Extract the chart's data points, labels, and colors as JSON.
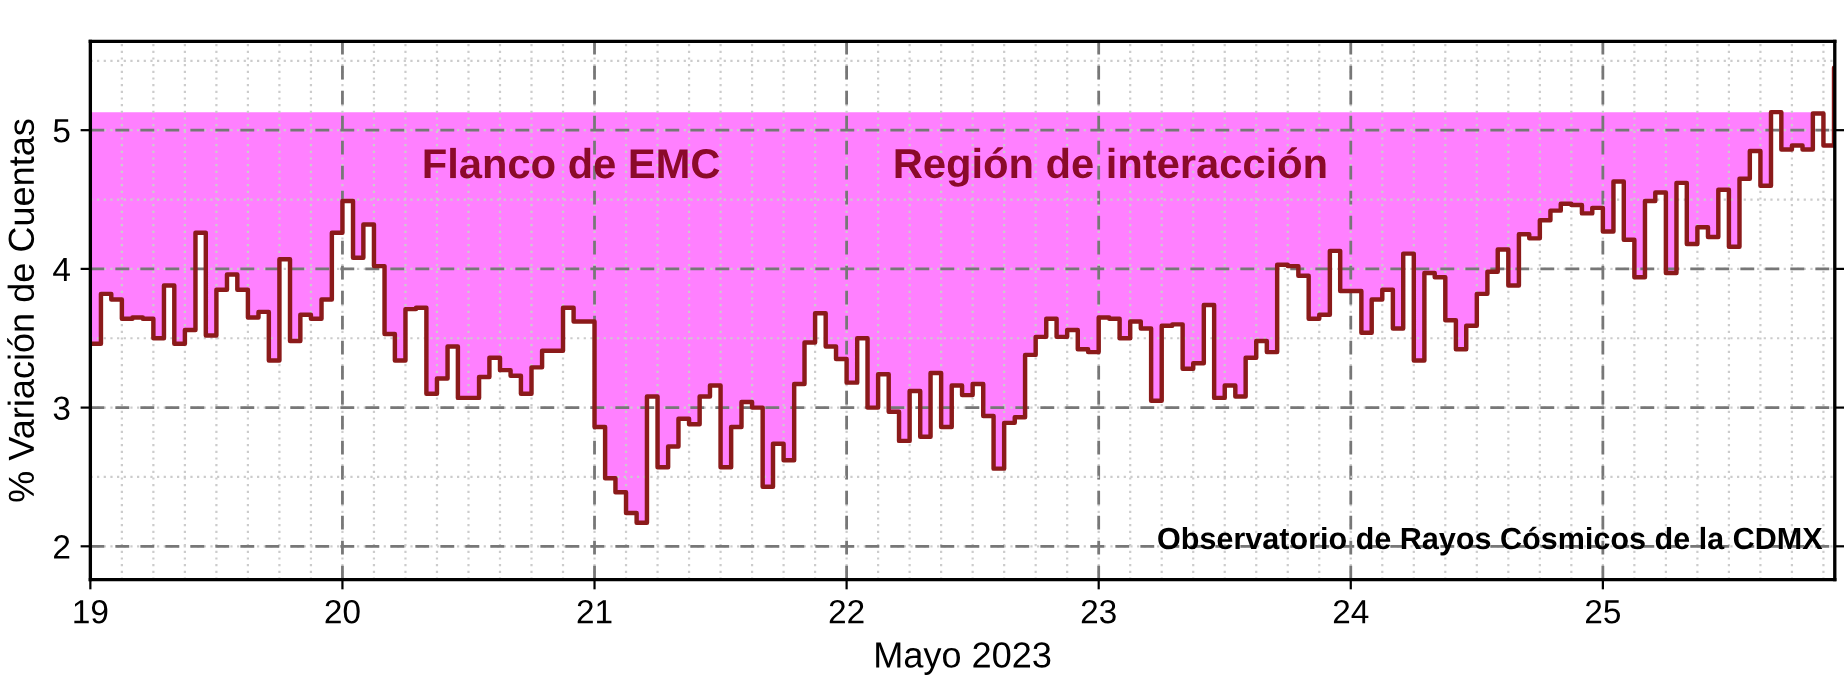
{
  "chart_data": {
    "type": "step",
    "xlabel": "Mayo 2023",
    "ylabel": "% Variación de Cuentas",
    "xlim": [
      19,
      25.92
    ],
    "ylim": [
      1.76,
      5.64
    ],
    "xticks": [
      19,
      20,
      21,
      22,
      23,
      24,
      25
    ],
    "yticks": [
      2,
      3,
      4,
      5
    ],
    "grid": true,
    "legend": false,
    "line_style": "solid",
    "marker": "none",
    "annotations": [
      "Flanco de EMC",
      "Región de interacción",
      "Observatorio de Rayos Cósmicos de la CDMX"
    ],
    "x": [
      19,
      19.042,
      19.083,
      19.125,
      19.167,
      19.208,
      19.25,
      19.292,
      19.333,
      19.375,
      19.417,
      19.458,
      19.5,
      19.542,
      19.583,
      19.625,
      19.667,
      19.708,
      19.75,
      19.792,
      19.833,
      19.875,
      19.917,
      19.958,
      20,
      20.042,
      20.083,
      20.125,
      20.167,
      20.208,
      20.25,
      20.292,
      20.333,
      20.375,
      20.417,
      20.458,
      20.5,
      20.542,
      20.583,
      20.625,
      20.667,
      20.708,
      20.75,
      20.792,
      20.833,
      20.875,
      20.917,
      20.958,
      21,
      21.042,
      21.083,
      21.125,
      21.167,
      21.208,
      21.25,
      21.292,
      21.333,
      21.375,
      21.417,
      21.458,
      21.5,
      21.542,
      21.583,
      21.625,
      21.667,
      21.708,
      21.75,
      21.792,
      21.833,
      21.875,
      21.917,
      21.958,
      22,
      22.042,
      22.083,
      22.125,
      22.167,
      22.208,
      22.25,
      22.292,
      22.333,
      22.375,
      22.417,
      22.458,
      22.5,
      22.542,
      22.583,
      22.625,
      22.667,
      22.708,
      22.75,
      22.792,
      22.833,
      22.875,
      22.917,
      22.958,
      23,
      23.042,
      23.083,
      23.125,
      23.167,
      23.208,
      23.25,
      23.292,
      23.333,
      23.375,
      23.417,
      23.458,
      23.5,
      23.542,
      23.583,
      23.625,
      23.667,
      23.708,
      23.75,
      23.792,
      23.833,
      23.875,
      23.917,
      23.958,
      24,
      24.042,
      24.083,
      24.125,
      24.167,
      24.208,
      24.25,
      24.292,
      24.333,
      24.375,
      24.417,
      24.458,
      24.5,
      24.542,
      24.583,
      24.625,
      24.667,
      24.708,
      24.75,
      24.792,
      24.833,
      24.875,
      24.917,
      24.958,
      25,
      25.042,
      25.083,
      25.125,
      25.167,
      25.208,
      25.25,
      25.292,
      25.333,
      25.375,
      25.417,
      25.458,
      25.5,
      25.542,
      25.583,
      25.625,
      25.667,
      25.708,
      25.75,
      25.792,
      25.833,
      25.875,
      25.917
    ],
    "series": [
      {
        "type": "area",
        "color": "#ff80ff",
        "values": [
          5.13,
          5.13,
          5.13,
          5.13,
          5.13,
          5.13,
          5.13,
          5.13,
          5.13,
          5.13,
          5.13,
          5.13,
          5.13,
          5.13,
          5.13,
          5.13,
          5.13,
          5.13,
          5.13,
          5.13,
          5.13,
          5.13,
          5.13,
          5.13,
          5.13,
          5.13,
          5.13,
          5.13,
          5.13,
          5.13,
          5.13,
          5.13,
          5.13,
          5.13,
          5.13,
          5.13,
          5.13,
          5.13,
          5.13,
          5.13,
          5.13,
          5.13,
          5.13,
          5.13,
          5.13,
          5.13,
          5.13,
          5.13,
          5.13,
          5.13,
          5.13,
          5.13,
          5.13,
          5.13,
          5.13,
          5.13,
          5.13,
          5.13,
          5.13,
          5.13,
          5.13,
          5.13,
          5.13,
          5.13,
          5.13,
          5.13,
          5.13,
          5.13,
          5.13,
          5.13,
          5.13,
          5.13,
          5.13,
          5.13,
          5.13,
          5.13,
          5.13,
          5.13,
          5.13,
          5.13,
          5.13,
          5.13,
          5.13,
          5.13,
          5.13,
          5.13,
          5.13,
          5.13,
          5.13,
          5.13,
          5.13,
          5.13,
          5.13,
          5.13,
          5.13,
          5.13,
          5.13,
          5.13,
          5.13,
          5.13,
          5.13,
          5.13,
          5.13,
          5.13,
          5.13,
          5.13,
          5.13,
          5.13,
          5.13,
          5.13,
          5.13,
          5.13,
          5.13,
          5.13,
          5.13,
          5.13,
          5.13,
          5.13,
          5.13,
          5.13,
          5.13,
          5.13,
          5.13,
          5.13,
          5.13,
          5.13,
          5.13,
          5.13,
          5.13,
          5.13,
          5.13,
          5.13,
          5.13,
          5.13,
          5.13,
          5.13,
          5.13,
          5.13,
          5.13,
          5.13,
          5.13,
          5.13,
          5.13,
          5.13,
          5.13,
          5.13,
          5.13,
          5.13,
          5.13,
          5.13,
          5.13,
          5.13,
          5.13,
          5.13,
          5.13,
          5.13,
          5.13,
          5.13,
          5.13,
          5.13,
          5.13,
          5.13,
          5.13,
          5.13,
          5.13,
          5.13,
          null
        ]
      },
      {
        "color": "#8b1a1a",
        "values": [
          3.46,
          3.82,
          3.78,
          3.64,
          3.65,
          3.64,
          3.5,
          3.88,
          3.46,
          3.56,
          4.26,
          3.52,
          3.85,
          3.96,
          3.85,
          3.65,
          3.69,
          3.34,
          4.07,
          3.48,
          3.67,
          3.64,
          3.78,
          4.26,
          4.49,
          4.08,
          4.32,
          4.02,
          3.53,
          3.34,
          3.71,
          3.72,
          3.1,
          3.21,
          3.44,
          3.07,
          3.07,
          3.22,
          3.36,
          3.27,
          3.23,
          3.1,
          3.29,
          3.41,
          3.41,
          3.72,
          3.62,
          3.62,
          2.86,
          2.49,
          2.39,
          2.24,
          2.17,
          3.08,
          2.57,
          2.72,
          2.92,
          2.88,
          3.08,
          3.16,
          2.57,
          2.86,
          3.04,
          3.0,
          2.43,
          2.74,
          2.62,
          3.17,
          3.47,
          3.68,
          3.44,
          3.35,
          3.18,
          3.5,
          3.0,
          3.24,
          2.97,
          2.76,
          3.12,
          2.79,
          3.25,
          2.86,
          3.16,
          3.09,
          3.17,
          2.94,
          2.56,
          2.89,
          2.93,
          3.38,
          3.51,
          3.64,
          3.51,
          3.56,
          3.42,
          3.4,
          3.65,
          3.64,
          3.5,
          3.62,
          3.57,
          3.05,
          3.59,
          3.6,
          3.28,
          3.32,
          3.74,
          3.07,
          3.16,
          3.08,
          3.36,
          3.48,
          3.4,
          4.03,
          4.02,
          3.95,
          3.64,
          3.67,
          4.13,
          3.84,
          3.84,
          3.54,
          3.78,
          3.85,
          3.57,
          4.11,
          3.34,
          3.97,
          3.94,
          3.63,
          3.42,
          3.59,
          3.82,
          3.98,
          4.14,
          3.88,
          4.25,
          4.22,
          4.35,
          4.42,
          4.47,
          4.46,
          4.4,
          4.44,
          4.27,
          4.63,
          4.21,
          3.94,
          4.49,
          4.55,
          3.97,
          4.62,
          4.18,
          4.3,
          4.23,
          4.57,
          4.16,
          4.65,
          4.85,
          4.6,
          5.13,
          4.86,
          4.89,
          4.86,
          5.12,
          4.89,
          5.45
        ]
      }
    ]
  }
}
